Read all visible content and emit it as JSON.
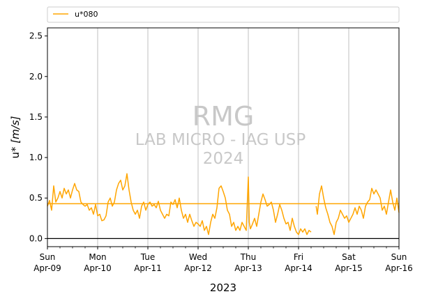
{
  "chart_data": {
    "type": "line",
    "title": "",
    "xlabel": "2023",
    "ylabel": "u* [m/s]",
    "ylabel_parts": {
      "main": "u* ",
      "unit": "[m/s]"
    },
    "xlim": [
      0,
      7
    ],
    "ylim": [
      -0.1,
      2.6
    ],
    "yticks": [
      0.0,
      0.5,
      1.0,
      1.5,
      2.0,
      2.5
    ],
    "ytick_labels": [
      "0.0",
      "0.5",
      "1.0",
      "1.5",
      "2.0",
      "2.5"
    ],
    "xticks": [
      {
        "x": 0,
        "day": "Sun",
        "date": "Apr-09"
      },
      {
        "x": 1,
        "day": "Mon",
        "date": "Apr-10"
      },
      {
        "x": 2,
        "day": "Tue",
        "date": "Apr-11"
      },
      {
        "x": 3,
        "day": "Wed",
        "date": "Apr-12"
      },
      {
        "x": 4,
        "day": "Thu",
        "date": "Apr-13"
      },
      {
        "x": 5,
        "day": "Fri",
        "date": "Apr-14"
      },
      {
        "x": 6,
        "day": "Sat",
        "date": "Apr-15"
      },
      {
        "x": 7,
        "day": "Sun",
        "date": "Apr-16"
      }
    ],
    "grid": {
      "x": true,
      "y": false
    },
    "legend_position": "top, above plot",
    "mean_line": 0.43,
    "zero_line": 0.0,
    "series": [
      {
        "name": "u*080",
        "color": "#FFA500",
        "x": [
          0,
          0.042,
          0.083,
          0.125,
          0.167,
          0.208,
          0.25,
          0.292,
          0.333,
          0.375,
          0.417,
          0.458,
          0.5,
          0.542,
          0.583,
          0.625,
          0.667,
          0.708,
          0.75,
          0.792,
          0.833,
          0.875,
          0.917,
          0.958,
          1,
          1.042,
          1.083,
          1.125,
          1.167,
          1.208,
          1.25,
          1.292,
          1.333,
          1.375,
          1.417,
          1.458,
          1.5,
          1.542,
          1.583,
          1.625,
          1.667,
          1.708,
          1.75,
          1.792,
          1.833,
          1.875,
          1.917,
          1.958,
          2,
          2.042,
          2.083,
          2.125,
          2.167,
          2.208,
          2.25,
          2.292,
          2.333,
          2.375,
          2.417,
          2.458,
          2.5,
          2.542,
          2.583,
          2.625,
          2.667,
          2.708,
          2.75,
          2.792,
          2.833,
          2.875,
          2.917,
          2.958,
          3,
          3.042,
          3.083,
          3.125,
          3.167,
          3.208,
          3.25,
          3.292,
          3.333,
          3.375,
          3.417,
          3.458,
          3.5,
          3.542,
          3.583,
          3.625,
          3.667,
          3.708,
          3.75,
          3.792,
          3.833,
          3.875,
          3.917,
          3.958,
          3.98,
          4,
          4.02,
          4.042,
          4.083,
          4.125,
          4.167,
          4.208,
          4.25,
          4.292,
          4.333,
          4.375,
          4.417,
          4.458,
          4.5,
          4.542,
          4.583,
          4.625,
          4.667,
          4.708,
          4.75,
          4.792,
          4.833,
          4.875,
          4.917,
          4.958,
          5,
          5.042,
          5.083,
          5.125,
          5.167,
          5.208,
          5.25,
          null,
          5.35,
          5.375,
          5.417,
          5.458,
          5.5,
          5.542,
          5.583,
          5.625,
          5.667,
          5.708,
          5.75,
          5.792,
          5.833,
          5.875,
          5.917,
          5.958,
          6,
          6.042,
          6.083,
          6.125,
          6.167,
          6.208,
          6.25,
          6.292,
          6.333,
          6.375,
          6.417,
          6.458,
          6.5,
          6.542,
          6.583,
          6.625,
          6.667,
          6.708,
          6.75,
          6.792,
          6.833,
          6.875,
          6.917,
          6.958,
          7
        ],
        "values": [
          0.4,
          0.47,
          0.35,
          0.65,
          0.45,
          0.5,
          0.58,
          0.5,
          0.62,
          0.55,
          0.6,
          0.5,
          0.6,
          0.68,
          0.6,
          0.58,
          0.45,
          0.42,
          0.4,
          0.42,
          0.35,
          0.38,
          0.3,
          0.42,
          0.28,
          0.3,
          0.22,
          0.23,
          0.28,
          0.45,
          0.5,
          0.4,
          0.45,
          0.6,
          0.68,
          0.72,
          0.6,
          0.65,
          0.8,
          0.6,
          0.45,
          0.35,
          0.3,
          0.35,
          0.25,
          0.4,
          0.45,
          0.35,
          0.42,
          0.45,
          0.4,
          0.42,
          0.38,
          0.46,
          0.35,
          0.3,
          0.25,
          0.3,
          0.28,
          0.45,
          0.42,
          0.48,
          0.38,
          0.5,
          0.35,
          0.25,
          0.3,
          0.2,
          0.3,
          0.22,
          0.15,
          0.2,
          0.18,
          0.15,
          0.22,
          0.1,
          0.15,
          0.05,
          0.2,
          0.3,
          0.25,
          0.38,
          0.62,
          0.65,
          0.58,
          0.5,
          0.35,
          0.3,
          0.15,
          0.2,
          0.1,
          0.15,
          0.1,
          0.2,
          0.15,
          0.1,
          0.45,
          0.76,
          0.2,
          0.12,
          0.18,
          0.25,
          0.15,
          0.3,
          0.45,
          0.55,
          0.48,
          0.4,
          0.42,
          0.45,
          0.35,
          0.2,
          0.3,
          0.42,
          0.35,
          0.25,
          0.18,
          0.2,
          0.1,
          0.25,
          0.15,
          0.08,
          0.05,
          0.12,
          0.08,
          0.12,
          0.05,
          0.1,
          0.08,
          null,
          0.4,
          0.3,
          0.55,
          0.65,
          0.5,
          0.38,
          0.3,
          0.2,
          0.15,
          0.05,
          0.2,
          0.25,
          0.35,
          0.3,
          0.25,
          0.28,
          0.2,
          0.25,
          0.3,
          0.38,
          0.3,
          0.4,
          0.35,
          0.25,
          0.4,
          0.45,
          0.48,
          0.62,
          0.55,
          0.6,
          0.55,
          0.5,
          0.35,
          0.4,
          0.3,
          0.45,
          0.6,
          0.45,
          0.35,
          0.5,
          0.32
        ]
      }
    ],
    "watermark": {
      "line1": "RMG",
      "line2": "LAB MICRO - IAG USP",
      "line3": "2024"
    }
  }
}
